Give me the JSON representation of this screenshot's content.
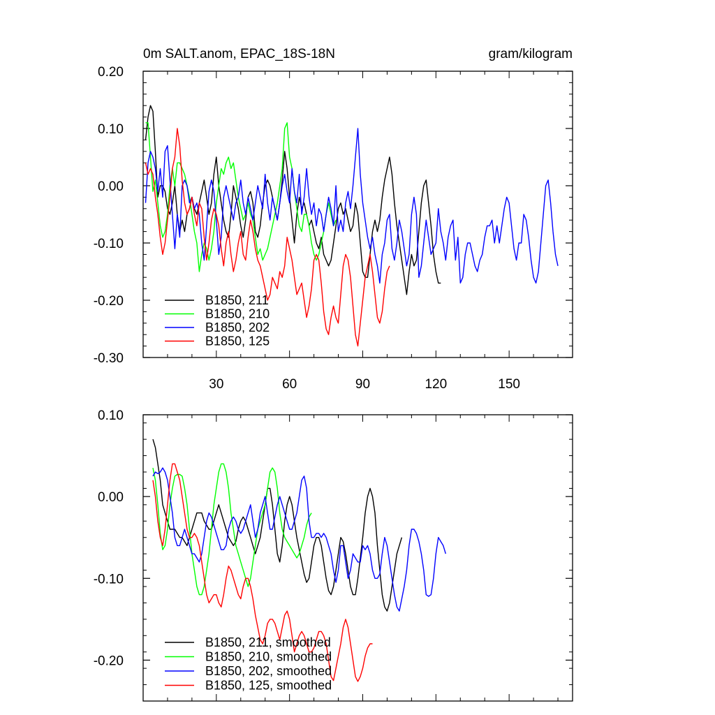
{
  "chart_data": [
    {
      "type": "line",
      "title": "0m SALT.anom, EPAC_18S-18N",
      "units": "gram/kilogram",
      "xlim": [
        0,
        176
      ],
      "ylim": [
        -0.3,
        0.2
      ],
      "yticks": [
        "0.20",
        "0.10",
        "0.00",
        "-0.10",
        "-0.20",
        "-0.30"
      ],
      "xticks": [
        "30",
        "60",
        "90",
        "120",
        "150"
      ],
      "series": [
        {
          "name": "B1850, 211",
          "color": "#000000",
          "x_start": 1,
          "values": [
            0.08,
            0.12,
            0.14,
            0.13,
            0.06,
            -0.02,
            0.0,
            0.0,
            -0.01,
            -0.04,
            -0.05,
            -0.03,
            0.0,
            -0.05,
            -0.08,
            -0.06,
            -0.08,
            -0.05,
            -0.04,
            -0.02,
            -0.04,
            -0.05,
            -0.03,
            -0.01,
            0.01,
            -0.02,
            -0.05,
            -0.03,
            0.02,
            0.05,
            0.0,
            -0.03,
            -0.06,
            -0.08,
            -0.09,
            -0.05,
            0.0,
            -0.02,
            -0.04,
            -0.07,
            -0.09,
            -0.06,
            -0.02,
            -0.01,
            -0.03,
            -0.08,
            -0.09,
            -0.07,
            -0.03,
            0.0,
            0.01,
            0.0,
            -0.02,
            -0.04,
            -0.06,
            -0.03,
            0.01,
            0.06,
            0.03,
            -0.02,
            -0.06,
            -0.1,
            -0.05,
            -0.02,
            -0.04,
            -0.03,
            -0.05,
            -0.07,
            -0.06,
            -0.08,
            -0.1,
            -0.11,
            -0.09,
            -0.12,
            -0.13,
            -0.14,
            -0.13,
            -0.1,
            -0.07,
            -0.04,
            -0.03,
            -0.05,
            -0.04,
            -0.06,
            -0.08,
            -0.07,
            -0.03,
            -0.05,
            -0.1,
            -0.15,
            -0.16,
            -0.16,
            -0.12,
            -0.08,
            -0.06,
            -0.08,
            -0.06,
            -0.02,
            0.01,
            0.03,
            0.05,
            0.02,
            -0.03,
            -0.07,
            -0.1,
            -0.13,
            -0.16,
            -0.19,
            -0.15,
            -0.12,
            -0.14,
            -0.13,
            -0.08,
            -0.03,
            0.0,
            0.01,
            -0.03,
            -0.07,
            -0.12,
            -0.15,
            -0.17,
            -0.17
          ]
        },
        {
          "name": "B1850, 210",
          "color": "#00ff00",
          "x_start": 1,
          "values": [
            0.11,
            0.11,
            0.05,
            -0.01,
            0.01,
            -0.03,
            -0.07,
            -0.09,
            -0.08,
            -0.05,
            0.0,
            0.03,
            0.0,
            0.04,
            0.04,
            0.03,
            0.02,
            0.0,
            -0.02,
            -0.05,
            -0.08,
            -0.1,
            -0.15,
            -0.12,
            -0.1,
            -0.11,
            -0.13,
            -0.11,
            -0.08,
            -0.03,
            0.0,
            0.03,
            0.02,
            0.04,
            0.05,
            0.03,
            0.04,
            0.01,
            -0.02,
            -0.04,
            -0.06,
            -0.05,
            -0.03,
            -0.05,
            -0.06,
            -0.09,
            -0.12,
            -0.11,
            -0.13,
            -0.12,
            -0.11,
            -0.09,
            -0.07,
            -0.05,
            -0.03,
            0.0,
            0.03,
            0.1,
            0.11,
            0.05,
            0.03,
            -0.01,
            -0.04,
            -0.07,
            -0.08,
            -0.05,
            -0.05,
            -0.07,
            -0.1,
            -0.12,
            -0.13,
            -0.12,
            -0.1,
            -0.08,
            -0.05,
            -0.03,
            -0.05,
            -0.07,
            -0.06
          ]
        },
        {
          "name": "B1850, 202",
          "color": "#0000ff",
          "x_start": 1,
          "values": [
            -0.03,
            0.04,
            0.06,
            0.05,
            0.03,
            -0.01,
            0.03,
            -0.02,
            0.06,
            0.07,
            0.01,
            -0.05,
            -0.11,
            -0.05,
            -0.09,
            0.0,
            0.01,
            0.0,
            -0.03,
            -0.02,
            -0.04,
            -0.03,
            -0.05,
            -0.1,
            -0.13,
            -0.07,
            -0.01,
            0.01,
            -0.01,
            -0.06,
            -0.12,
            -0.09,
            -0.02,
            0.0,
            -0.02,
            -0.04,
            -0.06,
            -0.03,
            -0.02,
            0.01,
            -0.03,
            -0.05,
            -0.02,
            -0.04,
            -0.06,
            -0.03,
            0.0,
            -0.02,
            -0.04,
            0.02,
            -0.03,
            -0.06,
            -0.02,
            -0.04,
            -0.06,
            -0.03,
            0.0,
            0.02,
            -0.01,
            -0.03,
            0.03,
            -0.01,
            -0.03,
            0.02,
            -0.05,
            -0.02,
            0.03,
            -0.02,
            -0.05,
            -0.03,
            -0.07,
            -0.04,
            -0.05,
            -0.08,
            -0.05,
            -0.02,
            -0.04,
            -0.07,
            0.0,
            -0.08,
            -0.06,
            -0.08,
            -0.03,
            -0.01,
            -0.04,
            0.0,
            0.05,
            0.1,
            0.02,
            -0.03,
            -0.06,
            -0.09,
            -0.11,
            -0.09,
            -0.12,
            -0.14,
            -0.17,
            -0.12,
            -0.1,
            -0.06,
            -0.05,
            -0.11,
            -0.13,
            -0.1,
            -0.06,
            -0.08,
            -0.11,
            -0.14,
            -0.12,
            -0.05,
            -0.02,
            -0.05,
            -0.16,
            -0.14,
            -0.1,
            -0.06,
            -0.09,
            -0.12,
            -0.11,
            -0.1,
            -0.04,
            -0.08,
            -0.1,
            -0.13,
            -0.09,
            -0.07,
            -0.06,
            -0.13,
            -0.09,
            -0.17,
            -0.16,
            -0.12,
            -0.1,
            -0.1,
            -0.12,
            -0.14,
            -0.15,
            -0.13,
            -0.12,
            -0.09,
            -0.07,
            -0.07,
            -0.06,
            -0.1,
            -0.07,
            -0.1,
            -0.07,
            -0.04,
            -0.02,
            -0.03,
            -0.07,
            -0.11,
            -0.13,
            -0.1,
            -0.1,
            -0.05,
            -0.06,
            -0.09,
            -0.13,
            -0.16,
            -0.17,
            -0.15,
            -0.1,
            -0.05,
            0.0,
            0.01,
            -0.03,
            -0.08,
            -0.12,
            -0.14
          ]
        },
        {
          "name": "B1850, 125",
          "color": "#ff0000",
          "x_start": 1,
          "values": [
            0.04,
            0.02,
            0.03,
            0.02,
            -0.02,
            -0.05,
            -0.09,
            -0.12,
            -0.1,
            -0.06,
            -0.02,
            0.03,
            0.05,
            0.1,
            0.07,
            0.01,
            -0.03,
            -0.05,
            -0.04,
            -0.02,
            -0.05,
            -0.07,
            -0.03,
            -0.04,
            -0.09,
            -0.13,
            -0.1,
            -0.06,
            -0.04,
            -0.05,
            -0.07,
            -0.11,
            -0.14,
            -0.1,
            -0.08,
            -0.12,
            -0.15,
            -0.13,
            -0.1,
            -0.08,
            -0.12,
            -0.13,
            -0.09,
            -0.06,
            -0.08,
            -0.11,
            -0.13,
            -0.14,
            -0.16,
            -0.18,
            -0.2,
            -0.19,
            -0.16,
            -0.17,
            -0.18,
            -0.15,
            -0.16,
            -0.14,
            -0.09,
            -0.11,
            -0.13,
            -0.16,
            -0.19,
            -0.18,
            -0.17,
            -0.2,
            -0.23,
            -0.21,
            -0.18,
            -0.13,
            -0.12,
            -0.13,
            -0.17,
            -0.22,
            -0.25,
            -0.26,
            -0.23,
            -0.21,
            -0.23,
            -0.24,
            -0.19,
            -0.14,
            -0.12,
            -0.13,
            -0.16,
            -0.21,
            -0.26,
            -0.28,
            -0.24,
            -0.2,
            -0.16,
            -0.14,
            -0.12,
            -0.15,
            -0.19,
            -0.23,
            -0.24,
            -0.22,
            -0.18,
            -0.15,
            -0.14
          ]
        }
      ]
    },
    {
      "type": "line",
      "title": "",
      "xlim": [
        0,
        176
      ],
      "ylim": [
        -0.25,
        0.1
      ],
      "yticks": [
        "0.10",
        "0.00",
        "-0.10",
        "-0.20"
      ],
      "series": [
        {
          "name": "B1850, 211, smoothed",
          "color": "#000000",
          "x_start": 4,
          "values": [
            0.07,
            0.06,
            0.04,
            0.02,
            -0.01,
            -0.02,
            -0.03,
            -0.04,
            -0.04,
            -0.04,
            -0.045,
            -0.05,
            -0.05,
            -0.055,
            -0.06,
            -0.05,
            -0.04,
            -0.03,
            -0.02,
            -0.02,
            -0.02,
            -0.03,
            -0.035,
            -0.04,
            -0.04,
            -0.03,
            -0.02,
            -0.01,
            -0.02,
            -0.03,
            -0.04,
            -0.05,
            -0.055,
            -0.06,
            -0.055,
            -0.04,
            -0.03,
            -0.025,
            -0.03,
            -0.04,
            -0.05,
            -0.06,
            -0.07,
            -0.06,
            -0.05,
            -0.03,
            -0.01,
            0.01,
            0.01,
            -0.01,
            -0.04,
            -0.07,
            -0.08,
            -0.06,
            -0.03,
            -0.01,
            0.0,
            -0.01,
            -0.03,
            -0.05,
            -0.065,
            -0.08,
            -0.095,
            -0.105,
            -0.1,
            -0.08,
            -0.06,
            -0.05,
            -0.05,
            -0.06,
            -0.08,
            -0.1,
            -0.115,
            -0.12,
            -0.11,
            -0.09,
            -0.07,
            -0.05,
            -0.055,
            -0.07,
            -0.09,
            -0.11,
            -0.12,
            -0.12,
            -0.1,
            -0.075,
            -0.05,
            -0.02,
            0.0,
            0.01,
            0.0,
            -0.02,
            -0.06,
            -0.09,
            -0.12,
            -0.135,
            -0.14,
            -0.13,
            -0.11,
            -0.09,
            -0.07,
            -0.06,
            -0.05
          ]
        },
        {
          "name": "B1850, 210, smoothed",
          "color": "#00ff00",
          "x_start": 4,
          "values": [
            0.035,
            0.02,
            -0.01,
            -0.045,
            -0.065,
            -0.06,
            -0.04,
            -0.01,
            0.01,
            0.025,
            0.027,
            0.027,
            0.025,
            0.01,
            -0.01,
            -0.04,
            -0.07,
            -0.09,
            -0.11,
            -0.12,
            -0.12,
            -0.11,
            -0.09,
            -0.07,
            -0.04,
            -0.01,
            0.01,
            0.03,
            0.04,
            0.04,
            0.03,
            0.01,
            -0.02,
            -0.04,
            -0.06,
            -0.07,
            -0.08,
            -0.09,
            -0.1,
            -0.11,
            -0.1,
            -0.08,
            -0.06,
            -0.04,
            -0.03,
            -0.02,
            -0.01,
            0.01,
            0.03,
            0.035,
            0.03,
            0.01,
            -0.02,
            -0.04,
            -0.05,
            -0.055,
            -0.06,
            -0.065,
            -0.07,
            -0.075,
            -0.07,
            -0.06,
            -0.05,
            -0.035,
            -0.025,
            -0.02
          ]
        },
        {
          "name": "B1850, 202, smoothed",
          "color": "#0000ff",
          "x_start": 4,
          "values": [
            0.025,
            0.03,
            0.028,
            0.03,
            0.035,
            0.03,
            0.02,
            0.0,
            -0.02,
            -0.05,
            -0.06,
            -0.06,
            -0.05,
            -0.04,
            -0.05,
            -0.06,
            -0.07,
            -0.07,
            -0.075,
            -0.08,
            -0.07,
            -0.05,
            -0.03,
            -0.02,
            -0.025,
            -0.035,
            -0.045,
            -0.055,
            -0.065,
            -0.065,
            -0.06,
            -0.04,
            -0.03,
            -0.025,
            -0.03,
            -0.04,
            -0.045,
            -0.04,
            -0.03,
            -0.02,
            -0.01,
            -0.03,
            -0.05,
            -0.04,
            -0.02,
            -0.01,
            0.0,
            -0.02,
            -0.04,
            -0.04,
            -0.025,
            -0.01,
            0.0,
            -0.01,
            -0.02,
            -0.03,
            -0.04,
            -0.04,
            -0.03,
            -0.02,
            0.0,
            0.02,
            0.025,
            0.01,
            -0.03,
            -0.05,
            -0.05,
            -0.045,
            -0.045,
            -0.05,
            -0.045,
            -0.05,
            -0.06,
            -0.07,
            -0.09,
            -0.105,
            -0.09,
            -0.06,
            -0.06,
            -0.08,
            -0.1,
            -0.09,
            -0.07,
            -0.075,
            -0.08,
            -0.08,
            -0.06,
            -0.065,
            -0.06,
            -0.07,
            -0.09,
            -0.1,
            -0.1,
            -0.095,
            -0.07,
            -0.05,
            -0.06,
            -0.08,
            -0.1,
            -0.12,
            -0.135,
            -0.14,
            -0.125,
            -0.11,
            -0.09,
            -0.06,
            -0.04,
            -0.04,
            -0.045,
            -0.055,
            -0.07,
            -0.09,
            -0.12,
            -0.122,
            -0.12,
            -0.1,
            -0.07,
            -0.05,
            -0.055,
            -0.06,
            -0.07
          ]
        },
        {
          "name": "B1850, 125, smoothed",
          "color": "#ff0000",
          "x_start": 4,
          "values": [
            0.02,
            0.0,
            -0.03,
            -0.05,
            -0.06,
            -0.04,
            -0.01,
            0.02,
            0.04,
            0.04,
            0.03,
            0.02,
            0.0,
            -0.02,
            -0.04,
            -0.05,
            -0.05,
            -0.045,
            -0.05,
            -0.06,
            -0.08,
            -0.1,
            -0.12,
            -0.13,
            -0.125,
            -0.12,
            -0.12,
            -0.13,
            -0.135,
            -0.12,
            -0.1,
            -0.085,
            -0.09,
            -0.1,
            -0.11,
            -0.12,
            -0.125,
            -0.11,
            -0.1,
            -0.1,
            -0.11,
            -0.125,
            -0.145,
            -0.16,
            -0.175,
            -0.18,
            -0.17,
            -0.155,
            -0.15,
            -0.15,
            -0.155,
            -0.165,
            -0.175,
            -0.16,
            -0.145,
            -0.14,
            -0.15,
            -0.17,
            -0.19,
            -0.18,
            -0.17,
            -0.165,
            -0.17,
            -0.18,
            -0.19,
            -0.19,
            -0.185,
            -0.175,
            -0.165,
            -0.165,
            -0.17,
            -0.18,
            -0.2,
            -0.22,
            -0.225,
            -0.21,
            -0.195,
            -0.18,
            -0.16,
            -0.15,
            -0.16,
            -0.18,
            -0.2,
            -0.22,
            -0.226,
            -0.22,
            -0.21,
            -0.195,
            -0.185,
            -0.18,
            -0.18
          ]
        }
      ]
    }
  ]
}
